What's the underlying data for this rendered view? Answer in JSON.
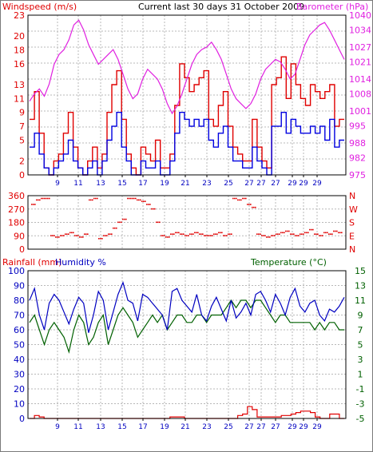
{
  "title": "Current last 30 days 31 October 2009",
  "colors": {
    "wind": "#e00000",
    "gust": "#e00000",
    "wind_avg": "#0000e0",
    "baro": "#e020e0",
    "dir": "#e00000",
    "rain": "#e00000",
    "humidity": "#0000c0",
    "temperature": "#006000",
    "grid": "#b8b8b8",
    "axis": "#000000"
  },
  "chart_data": [
    {
      "type": "line",
      "ylabel_left": "Windspeed (m/s)",
      "ylabel_right": "Barometer (hPa)",
      "y_left_ticks": [
        0,
        2,
        5,
        7,
        9,
        11,
        13,
        16,
        18,
        20,
        23
      ],
      "y_right_ticks": [
        975,
        982,
        988,
        995,
        1001,
        1008,
        1014,
        1021,
        1027,
        1034,
        1040
      ],
      "ylim_left": [
        0,
        23
      ],
      "ylim_right": [
        975,
        1040
      ],
      "x_tick_labels": [
        "9",
        "11",
        "13",
        "15",
        "17",
        "19",
        "21",
        "23",
        "25",
        "27",
        "27",
        "27",
        "29",
        "29",
        "29"
      ],
      "grid": true,
      "series": [
        {
          "name": "",
          "axis": "left",
          "values": [
            8,
            12,
            6,
            1,
            0,
            2,
            3,
            6,
            9,
            4,
            1,
            0,
            2,
            4,
            1,
            3,
            9,
            13,
            15,
            8,
            3,
            1,
            0,
            4,
            3,
            2,
            5,
            1,
            1,
            3,
            10,
            16,
            14,
            12,
            13,
            14,
            15,
            8,
            7,
            10,
            12,
            7,
            4,
            3,
            2,
            2,
            8,
            4,
            2,
            1,
            13,
            14,
            17,
            11,
            16,
            13,
            11,
            10,
            13,
            12,
            11,
            12,
            13,
            7,
            8
          ]
        },
        {
          "name": "",
          "axis": "left",
          "values": [
            4,
            6,
            3,
            1,
            0,
            1,
            2,
            3,
            5,
            2,
            1,
            0,
            1,
            2,
            0,
            2,
            5,
            7,
            9,
            4,
            2,
            0,
            0,
            2,
            1,
            1,
            2,
            0,
            0,
            2,
            6,
            9,
            8,
            7,
            8,
            7,
            8,
            5,
            4,
            6,
            7,
            4,
            2,
            2,
            1,
            1,
            4,
            2,
            1,
            0,
            7,
            7,
            9,
            6,
            8,
            7,
            6,
            6,
            7,
            6,
            7,
            5,
            8,
            4,
            5
          ]
        },
        {
          "name": "",
          "axis": "right",
          "values": [
            1005,
            1008,
            1010,
            1007,
            1012,
            1020,
            1024,
            1026,
            1030,
            1036,
            1038,
            1034,
            1028,
            1024,
            1020,
            1022,
            1024,
            1026,
            1022,
            1016,
            1010,
            1006,
            1008,
            1014,
            1018,
            1016,
            1014,
            1010,
            1004,
            1000,
            1003,
            1008,
            1014,
            1020,
            1024,
            1026,
            1027,
            1029,
            1026,
            1022,
            1016,
            1010,
            1006,
            1004,
            1002,
            1004,
            1008,
            1014,
            1018,
            1020,
            1022,
            1021,
            1018,
            1014,
            1016,
            1022,
            1028,
            1032,
            1034,
            1036,
            1037,
            1034,
            1030,
            1026,
            1022
          ]
        }
      ]
    },
    {
      "type": "scatter",
      "y_ticks": [
        0,
        90,
        180,
        270,
        360
      ],
      "y_right_labels": [
        "N",
        "W",
        "S",
        "E",
        "N"
      ],
      "ylim": [
        0,
        360
      ],
      "series": [
        {
          "name": "",
          "values": [
            300,
            330,
            340,
            340,
            90,
            80,
            90,
            100,
            110,
            90,
            80,
            100,
            330,
            340,
            70,
            90,
            100,
            140,
            180,
            200,
            340,
            340,
            330,
            320,
            300,
            270,
            180,
            90,
            80,
            100,
            110,
            100,
            90,
            100,
            110,
            100,
            90,
            90,
            100,
            110,
            90,
            100,
            340,
            330,
            340,
            300,
            280,
            100,
            90,
            80,
            90,
            100,
            110,
            120,
            100,
            90,
            100,
            110,
            130,
            100,
            90,
            110,
            100,
            120,
            110
          ]
        }
      ]
    },
    {
      "type": "line",
      "ylabel_left": "Rainfall (mm)",
      "ylabel_left_2": "Humidity %",
      "ylabel_right": "Temperature (°C)",
      "y_left_ticks": [
        0,
        10,
        20,
        30,
        40,
        50,
        60,
        70,
        80,
        90,
        100
      ],
      "y_right_ticks": [
        -5,
        -3,
        -1,
        1,
        3,
        5,
        7,
        9,
        11,
        13,
        15
      ],
      "ylim_left": [
        0,
        100
      ],
      "ylim_right": [
        -5,
        15
      ],
      "x_tick_labels": [
        "9",
        "11",
        "13",
        "15",
        "17",
        "19",
        "21",
        "23",
        "25",
        "27",
        "27",
        "27",
        "29",
        "29",
        "29"
      ],
      "grid": true,
      "series": [
        {
          "name": "",
          "axis": "left",
          "values": [
            80,
            88,
            70,
            60,
            78,
            84,
            80,
            72,
            64,
            74,
            82,
            78,
            58,
            70,
            86,
            80,
            60,
            72,
            84,
            92,
            80,
            78,
            66,
            84,
            82,
            78,
            74,
            70,
            60,
            86,
            88,
            80,
            76,
            72,
            84,
            70,
            66,
            76,
            82,
            74,
            66,
            80,
            68,
            72,
            78,
            70,
            84,
            86,
            80,
            72,
            84,
            78,
            70,
            82,
            88,
            76,
            72,
            78,
            80,
            70,
            66,
            74,
            72,
            76,
            82
          ]
        },
        {
          "name": "",
          "axis": "left",
          "values": [
            0,
            2,
            1,
            0,
            0,
            0,
            0,
            0,
            0,
            0,
            0,
            0,
            0,
            0,
            0,
            0,
            0,
            0,
            0,
            0,
            0,
            0,
            0,
            0,
            0,
            0,
            0,
            0,
            0,
            1,
            1,
            1,
            0,
            0,
            0,
            0,
            0,
            0,
            0,
            0,
            0,
            0,
            0,
            2,
            3,
            8,
            6,
            1,
            1,
            1,
            1,
            1,
            2,
            2,
            3,
            4,
            5,
            5,
            4,
            1,
            0,
            0,
            3,
            3,
            0
          ]
        },
        {
          "name": "",
          "axis": "right",
          "values": [
            8,
            9,
            7,
            5,
            7,
            8,
            7,
            6,
            4,
            7,
            9,
            8,
            5,
            6,
            8,
            9,
            5,
            7,
            9,
            10,
            9,
            8,
            6,
            7,
            8,
            9,
            8,
            9,
            7,
            8,
            9,
            9,
            8,
            8,
            9,
            9,
            8,
            9,
            9,
            9,
            10,
            11,
            10,
            11,
            11,
            10,
            11,
            11,
            10,
            9,
            8,
            9,
            9,
            8,
            8,
            8,
            8,
            8,
            7,
            8,
            7,
            8,
            8,
            7,
            7
          ]
        }
      ]
    }
  ]
}
